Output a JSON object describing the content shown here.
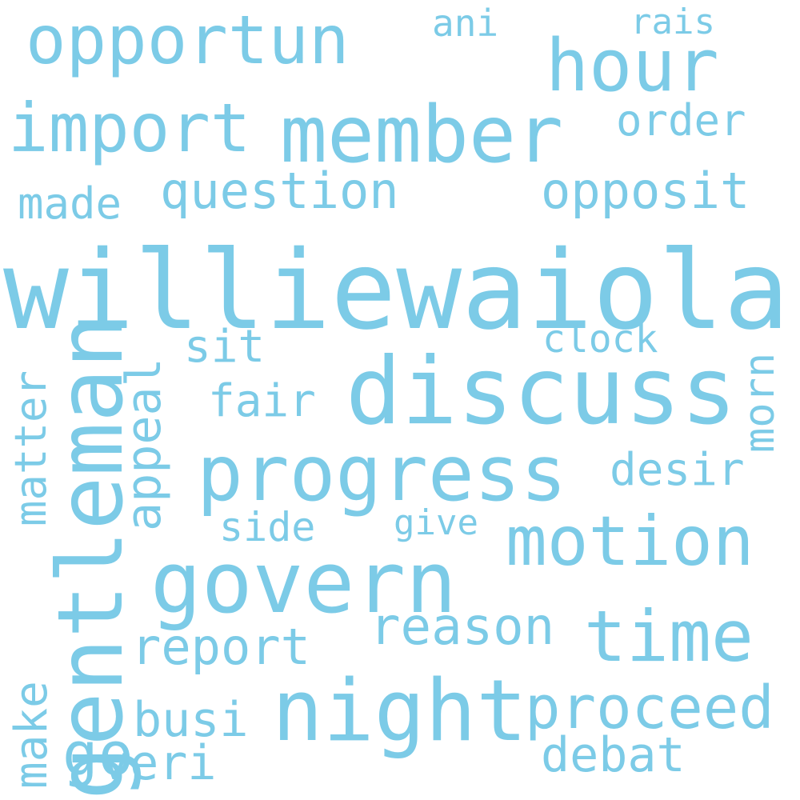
{
  "style": {
    "word_color": "#7ccbe7",
    "background": "#ffffff"
  },
  "words": {
    "williewaiola": "williewaiola",
    "discuss": "discuss",
    "gentleman": "gentleman",
    "govern": "govern",
    "progress": "progress",
    "member": "member",
    "night": "night",
    "opportun": "opportun",
    "hour": "hour",
    "import": "import",
    "motion": "motion",
    "time": "time",
    "proceed": "proceed",
    "go": "go",
    "question": "question",
    "opposit": "opposit",
    "reason": "reason",
    "report": "report",
    "appeal": "appeal",
    "matter": "matter",
    "morn": "morn",
    "desir": "desir",
    "debat": "debat",
    "make": "make",
    "made": "made",
    "order": "order",
    "busi": "busi",
    "veri": "veri",
    "fair": "fair",
    "sit": "sit",
    "clock": "clock",
    "side": "side",
    "give": "give",
    "ani": "ani",
    "rais": "rais"
  }
}
